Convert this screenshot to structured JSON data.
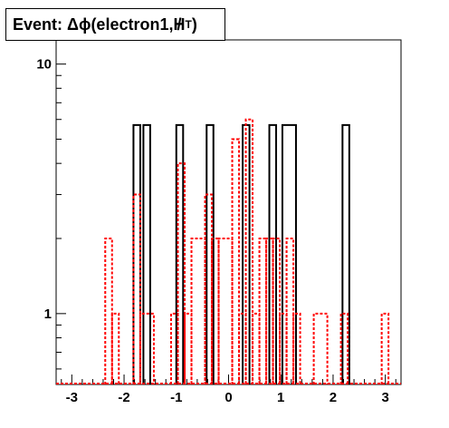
{
  "chart_data": {
    "type": "bar",
    "title": "Event: Δϕ(electron1,",
    "title_symbol": "H",
    "title_subscript": "T",
    "title_close": ")",
    "yscale": "log",
    "xlim": [
      -3.3,
      3.3
    ],
    "ylim": [
      0.52,
      12.5
    ],
    "x_ticks": [
      {
        "value": -3,
        "label": "-3"
      },
      {
        "value": -2,
        "label": "-2"
      },
      {
        "value": -1,
        "label": "-1"
      },
      {
        "value": 0,
        "label": "0"
      },
      {
        "value": 1,
        "label": "1"
      },
      {
        "value": 2,
        "label": "2"
      },
      {
        "value": 3,
        "label": "3"
      }
    ],
    "y_ticks": [
      {
        "value": 1,
        "label": "1"
      },
      {
        "value": 10,
        "label": "10"
      }
    ],
    "grid": false,
    "bin_width": 0.13,
    "series": [
      {
        "color": "#000000",
        "style": "solid",
        "bins": [
          {
            "x0": -1.82,
            "x1": -1.69,
            "value": 5.7
          },
          {
            "x0": -1.63,
            "x1": -1.5,
            "value": 5.7
          },
          {
            "x0": -1.0,
            "x1": -0.87,
            "value": 5.7
          },
          {
            "x0": -0.42,
            "x1": -0.29,
            "value": 5.7
          },
          {
            "x0": 0.27,
            "x1": 0.4,
            "value": 5.7
          },
          {
            "x0": 0.78,
            "x1": 0.91,
            "value": 5.7
          },
          {
            "x0": 1.03,
            "x1": 1.29,
            "value": 5.7
          },
          {
            "x0": 2.18,
            "x1": 2.31,
            "value": 5.7
          }
        ]
      },
      {
        "color": "#ff0000",
        "style": "dashed",
        "bins": [
          {
            "x0": -2.36,
            "x1": -2.23,
            "value": 2.0
          },
          {
            "x0": -2.23,
            "x1": -2.1,
            "value": 1.0
          },
          {
            "x0": -1.82,
            "x1": -1.69,
            "value": 3.0
          },
          {
            "x0": -1.69,
            "x1": -1.43,
            "value": 1.0
          },
          {
            "x0": -1.1,
            "x1": -0.97,
            "value": 1.0
          },
          {
            "x0": -0.97,
            "x1": -0.84,
            "value": 4.0
          },
          {
            "x0": -0.84,
            "x1": -0.71,
            "value": 1.0
          },
          {
            "x0": -0.71,
            "x1": -0.45,
            "value": 2.0
          },
          {
            "x0": -0.45,
            "x1": -0.32,
            "value": 3.0
          },
          {
            "x0": -0.32,
            "x1": -0.19,
            "value": 2.0
          },
          {
            "x0": -0.19,
            "x1": 0.07,
            "value": 2.0
          },
          {
            "x0": 0.07,
            "x1": 0.2,
            "value": 5.0
          },
          {
            "x0": 0.2,
            "x1": 0.33,
            "value": 1.0
          },
          {
            "x0": 0.33,
            "x1": 0.46,
            "value": 6.0
          },
          {
            "x0": 0.46,
            "x1": 0.59,
            "value": 1.0
          },
          {
            "x0": 0.59,
            "x1": 0.72,
            "value": 2.0
          },
          {
            "x0": 0.72,
            "x1": 0.85,
            "value": 2.0
          },
          {
            "x0": 0.85,
            "x1": 0.98,
            "value": 2.0
          },
          {
            "x0": 0.98,
            "x1": 1.11,
            "value": 1.0
          },
          {
            "x0": 1.11,
            "x1": 1.24,
            "value": 2.0
          },
          {
            "x0": 1.24,
            "x1": 1.37,
            "value": 1.0
          },
          {
            "x0": 1.63,
            "x1": 1.89,
            "value": 1.0
          },
          {
            "x0": 2.15,
            "x1": 2.28,
            "value": 1.0
          },
          {
            "x0": 2.93,
            "x1": 3.06,
            "value": 1.0
          }
        ]
      }
    ]
  }
}
